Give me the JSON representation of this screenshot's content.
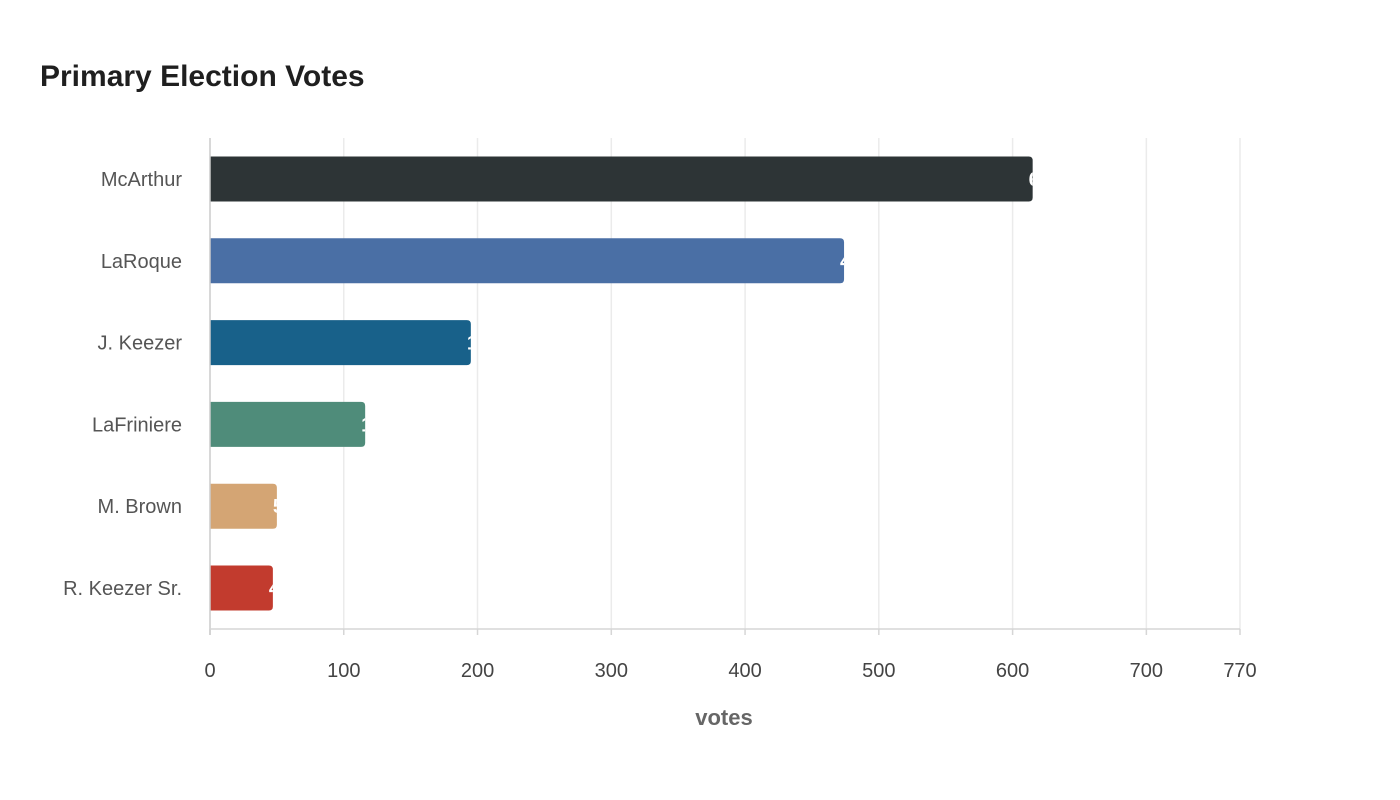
{
  "chart_data": {
    "type": "bar",
    "orientation": "horizontal",
    "title": "Primary Election Votes",
    "xlabel": "votes",
    "ylabel": "",
    "categories": [
      "McArthur",
      "LaRoque",
      "J. Keezer",
      "LaFriniere",
      "M. Brown",
      "R. Keezer Sr."
    ],
    "values": [
      615,
      474,
      195,
      116,
      50,
      47
    ],
    "colors": [
      "#2d3436",
      "#4a6fa5",
      "#18618a",
      "#4f8c7a",
      "#d4a574",
      "#c23b2e"
    ],
    "xlim": [
      0,
      770
    ],
    "xticks": [
      0,
      100,
      200,
      300,
      400,
      500,
      600,
      700,
      770
    ],
    "grid": "vertical",
    "legend": "none",
    "data_labels": "inside-end"
  }
}
